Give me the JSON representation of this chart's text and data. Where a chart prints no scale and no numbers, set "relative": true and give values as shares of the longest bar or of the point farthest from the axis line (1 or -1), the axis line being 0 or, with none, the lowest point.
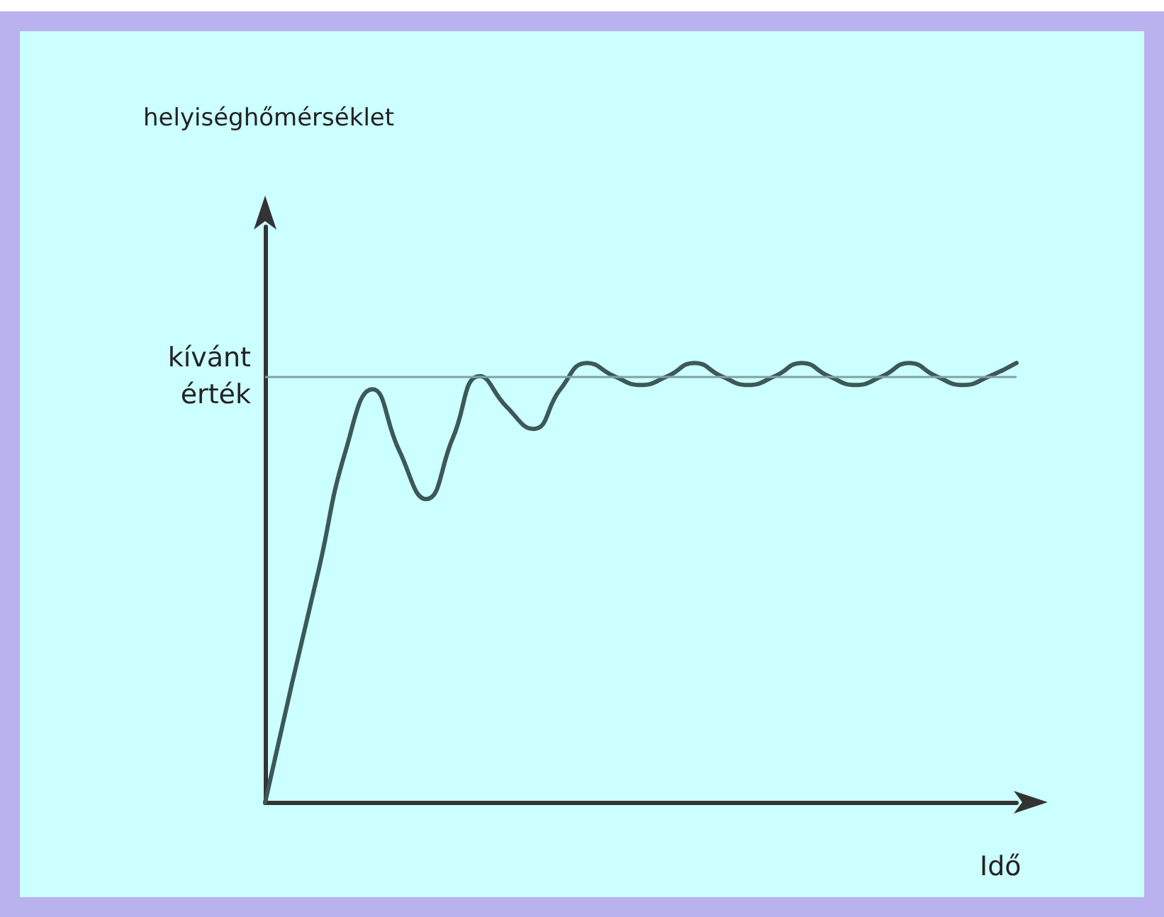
{
  "chart_data": {
    "type": "line",
    "annotations": [
      "helyiséghőmérséklet"
    ],
    "xlabel": "Idő",
    "relative": true,
    "categories": [
      null,
      null,
      null,
      null,
      null,
      null,
      null,
      null,
      null,
      null,
      null,
      null,
      null,
      null,
      null,
      null,
      null,
      null,
      null,
      null,
      null,
      null,
      null,
      null,
      null,
      null,
      null,
      null,
      null
    ],
    "series": [
      {
        "color": "#3d5858",
        "values": [
          0,
          0.27,
          0.53,
          0.8,
          0.94,
          0.8,
          0.69,
          0.83,
          0.97,
          0.9,
          0.85,
          0.94,
          1,
          0.97,
          0.95,
          0.97,
          1,
          0.97,
          0.95,
          0.97,
          1,
          0.97,
          0.95,
          0.97,
          1,
          0.97,
          0.95,
          0.97,
          1
        ]
      }
    ],
    "ref_lines": [
      {
        "axis": "y",
        "value": 0.97,
        "label": "kívánt érték",
        "color": "#7fa3a3"
      }
    ],
    "marker": "none",
    "line_style": "solid"
  }
}
